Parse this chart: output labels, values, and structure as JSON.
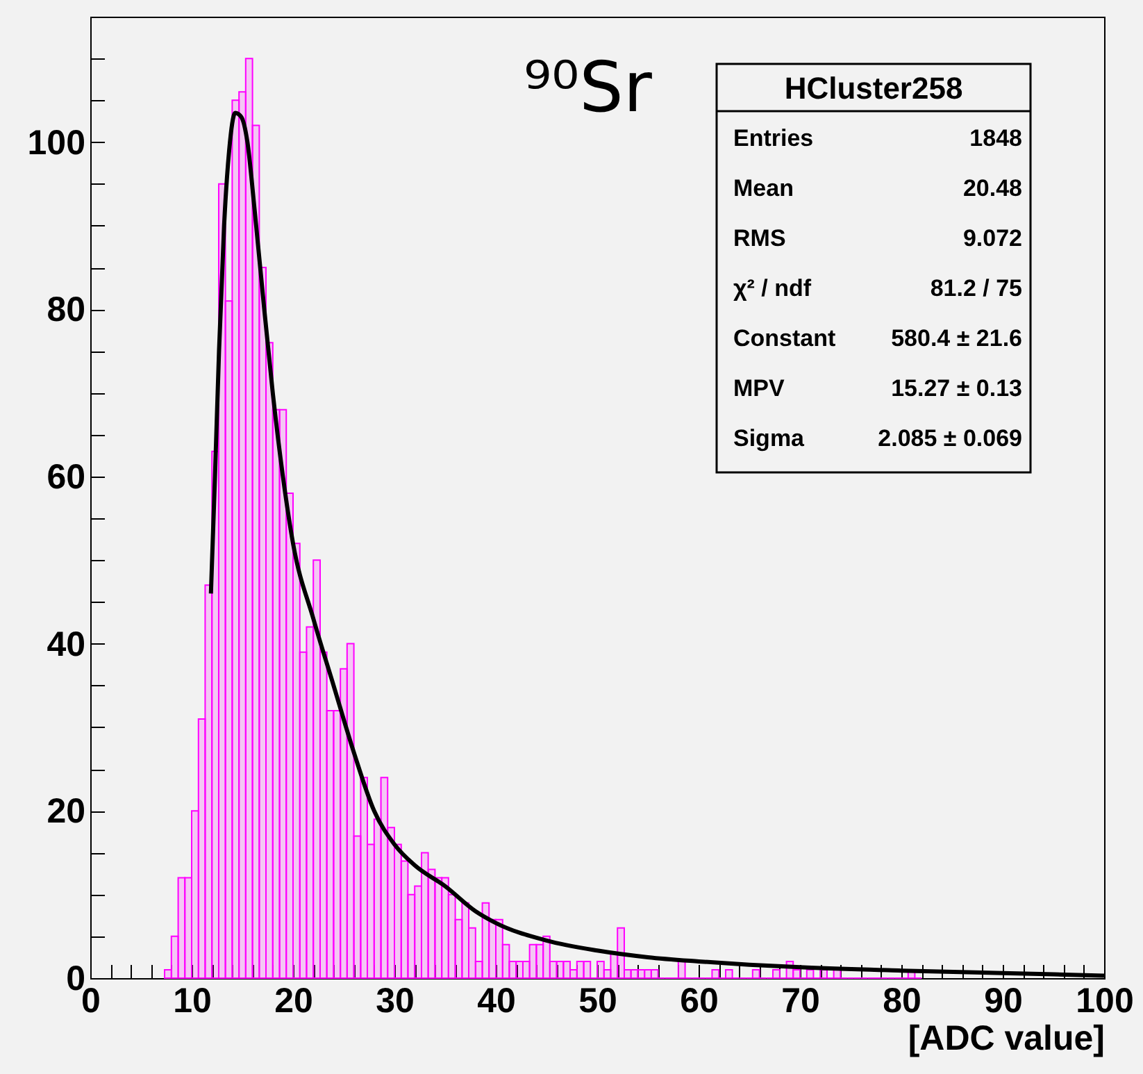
{
  "chart_data": {
    "type": "histogram",
    "title": "⁹⁰Sr",
    "xlabel": "[ADC value]",
    "annotations": [
      "HCluster258",
      "Entries",
      "1848",
      "Mean",
      "20.48",
      "RMS",
      "9.072",
      "χ² / ndf",
      "81.2 / 75",
      "Constant",
      "580.4 ± 21.6",
      "MPV",
      "15.27 ± 0.13",
      "Sigma",
      "2.085 ± 0.069"
    ],
    "bins": [
      7.33,
      8,
      8.67,
      9.33,
      10,
      10.67,
      11.33,
      12,
      12.67,
      13.33,
      14,
      14.67,
      15.33,
      16,
      16.67,
      17.33,
      18,
      18.67,
      19.33,
      20,
      20.67,
      21.33,
      22,
      22.67,
      23.33,
      24,
      24.67,
      25.33,
      26,
      26.67,
      27.33,
      28,
      28.67,
      29.33,
      30,
      30.67,
      31.33,
      32,
      32.67,
      33.33,
      34,
      34.67,
      35.33,
      36,
      36.67,
      37.33,
      38,
      38.67,
      39.33,
      40,
      40.67,
      41.33,
      42,
      42.67,
      43.33,
      44,
      44.67,
      45.33,
      46,
      46.67,
      47.33,
      48,
      48.67,
      49.33,
      50,
      50.67,
      51.33,
      52,
      52.67,
      53.33,
      54,
      54.67,
      55.33,
      56,
      56.67,
      57.33,
      58,
      58.67,
      59.33,
      60,
      60.67,
      61.33,
      62,
      62.67,
      63.33,
      64,
      64.67,
      65.33,
      66,
      66.67,
      67.33,
      68,
      68.67,
      69.33,
      70,
      70.67,
      71.33,
      72,
      72.67,
      73.33,
      74,
      74.67,
      75.33,
      76,
      76.67,
      77.33,
      78,
      78.67,
      79.33,
      80,
      80.67,
      81.33,
      82
    ],
    "values": [
      1,
      5,
      12,
      12,
      20,
      31,
      47,
      63,
      95,
      81,
      105,
      106,
      110,
      102,
      85,
      76,
      68,
      68,
      58,
      52,
      39,
      42,
      50,
      39,
      32,
      32,
      37,
      40,
      17,
      24,
      16,
      19,
      24,
      18,
      16,
      14,
      10,
      11,
      15,
      13,
      12,
      12,
      10,
      7,
      9,
      6,
      2,
      9,
      7,
      7,
      4,
      2,
      2,
      2,
      4,
      4,
      5,
      2,
      2,
      2,
      1,
      2,
      2,
      0,
      2,
      1,
      3,
      6,
      1,
      1,
      1,
      1,
      1,
      0,
      0,
      0,
      2,
      0,
      0,
      0,
      0,
      1,
      0,
      1,
      0,
      0,
      0,
      1,
      0,
      0,
      1,
      0,
      2,
      1,
      0,
      1,
      0,
      1,
      0,
      1,
      0,
      0,
      0,
      0,
      0,
      0,
      0,
      0,
      0,
      0,
      1,
      0
    ],
    "color": "#ff00ff",
    "series": [
      {
        "type": "line",
        "color": "#000000",
        "x": [
          11.9,
          12.3,
          12.7,
          13.2,
          13.7,
          14.3,
          14.9,
          15.5,
          16.2,
          17,
          18,
          19,
          20,
          22,
          24,
          26,
          28,
          30,
          32,
          35,
          38,
          40,
          45,
          50,
          55,
          60,
          65,
          70,
          80,
          90,
          100
        ],
        "values": [
          46,
          60,
          75,
          90,
          99,
          103.5,
          103,
          100,
          92,
          82,
          70,
          60,
          52,
          43,
          35,
          27,
          20,
          16,
          13.5,
          11,
          8,
          6.6,
          4.5,
          3.3,
          2.5,
          2,
          1.6,
          1.3,
          0.9,
          0.6,
          0.3
        ]
      }
    ],
    "xlim": [
      0,
      100
    ],
    "ylim": [
      0,
      115
    ],
    "xticks": [
      0,
      {
        "value": 2,
        "label": null
      },
      {
        "value": 4,
        "label": null
      },
      {
        "value": 6,
        "label": null
      },
      {
        "value": 8,
        "label": null
      },
      10,
      {
        "value": 12,
        "label": null
      },
      {
        "value": 14,
        "label": null
      },
      {
        "value": 16,
        "label": null
      },
      {
        "value": 18,
        "label": null
      },
      20,
      {
        "value": 22,
        "label": null
      },
      {
        "value": 24,
        "label": null
      },
      {
        "value": 26,
        "label": null
      },
      {
        "value": 28,
        "label": null
      },
      30,
      {
        "value": 32,
        "label": null
      },
      {
        "value": 34,
        "label": null
      },
      {
        "value": 36,
        "label": null
      },
      {
        "value": 38,
        "label": null
      },
      40,
      {
        "value": 42,
        "label": null
      },
      {
        "value": 44,
        "label": null
      },
      {
        "value": 46,
        "label": null
      },
      {
        "value": 48,
        "label": null
      },
      50,
      {
        "value": 52,
        "label": null
      },
      {
        "value": 54,
        "label": null
      },
      {
        "value": 56,
        "label": null
      },
      {
        "value": 58,
        "label": null
      },
      60,
      {
        "value": 62,
        "label": null
      },
      {
        "value": 64,
        "label": null
      },
      {
        "value": 66,
        "label": null
      },
      {
        "value": 68,
        "label": null
      },
      70,
      {
        "value": 72,
        "label": null
      },
      {
        "value": 74,
        "label": null
      },
      {
        "value": 76,
        "label": null
      },
      {
        "value": 78,
        "label": null
      },
      80,
      {
        "value": 82,
        "label": null
      },
      {
        "value": 84,
        "label": null
      },
      {
        "value": 86,
        "label": null
      },
      {
        "value": 88,
        "label": null
      },
      90,
      {
        "value": 92,
        "label": null
      },
      {
        "value": 94,
        "label": null
      },
      {
        "value": 96,
        "label": null
      },
      {
        "value": 98,
        "label": null
      },
      100
    ],
    "yticks": [
      0,
      {
        "value": 5,
        "label": null
      },
      {
        "value": 10,
        "label": null
      },
      {
        "value": 15,
        "label": null
      },
      20,
      {
        "value": 25,
        "label": null
      },
      {
        "value": 30,
        "label": null
      },
      {
        "value": 35,
        "label": null
      },
      40,
      {
        "value": 45,
        "label": null
      },
      {
        "value": 50,
        "label": null
      },
      {
        "value": 55,
        "label": null
      },
      60,
      {
        "value": 65,
        "label": null
      },
      {
        "value": 70,
        "label": null
      },
      {
        "value": 75,
        "label": null
      },
      80,
      {
        "value": 85,
        "label": null
      },
      {
        "value": 90,
        "label": null
      },
      {
        "value": 95,
        "label": null
      },
      100,
      {
        "value": 105,
        "label": null
      },
      {
        "value": 110,
        "label": null
      },
      {
        "value": 115,
        "label": null
      }
    ]
  }
}
